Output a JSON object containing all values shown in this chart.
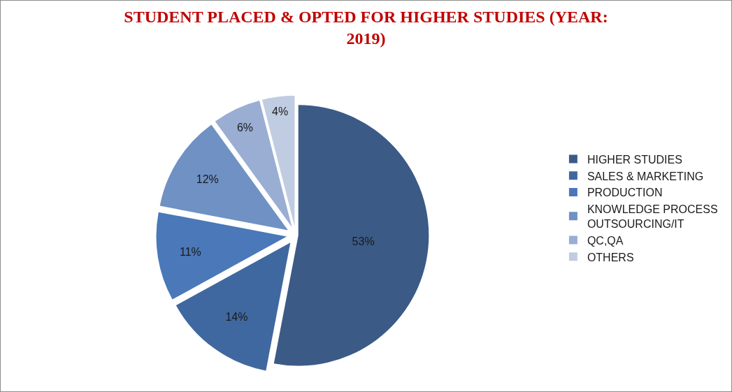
{
  "chart_data": {
    "type": "pie",
    "title": "STUDENT PLACED & OPTED FOR HIGHER STUDIES (YEAR: 2019)",
    "categories": [
      "HIGHER STUDIES",
      "SALES & MARKETING",
      "PRODUCTION",
      "KNOWLEDGE PROCESS OUTSOURCING/IT",
      "QC,QA",
      "OTHERS"
    ],
    "values": [
      53,
      14,
      11,
      12,
      6,
      4
    ],
    "value_labels": [
      "53%",
      "14%",
      "11%",
      "12%",
      "6%",
      "4%"
    ],
    "colors": [
      "#3b5a86",
      "#4068a0",
      "#4a78b8",
      "#6f91c4",
      "#9aaed3",
      "#c0cce2"
    ],
    "legend": "right"
  }
}
